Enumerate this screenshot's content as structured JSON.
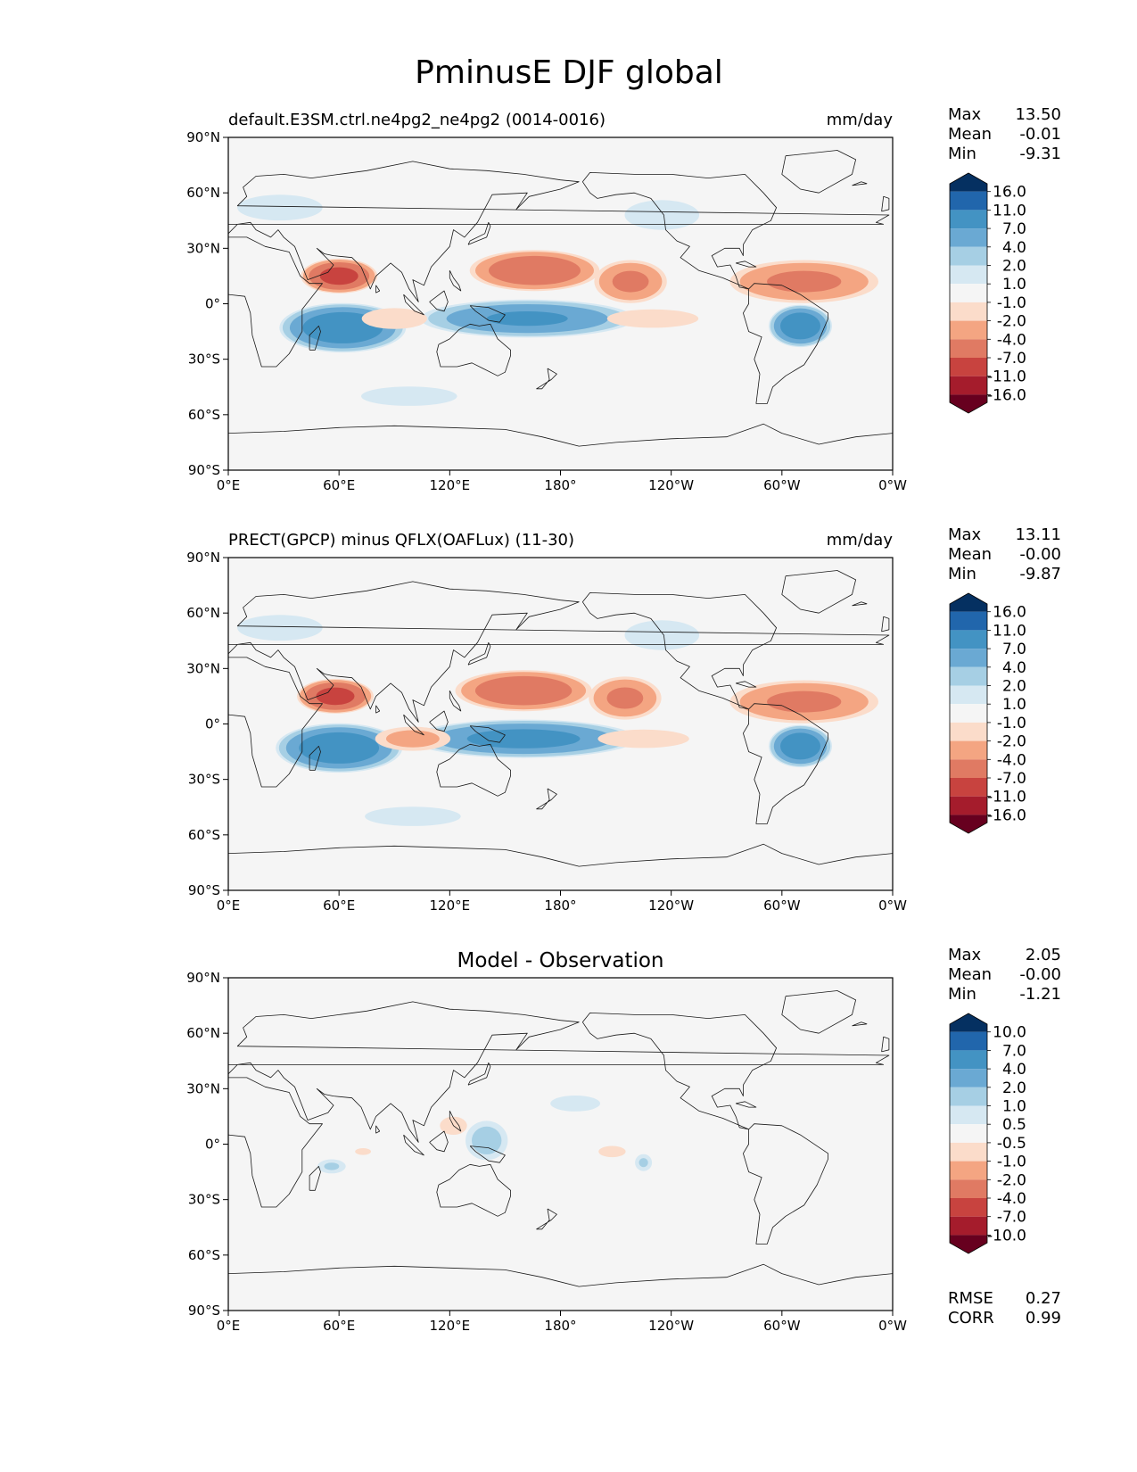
{
  "title": "PminusE DJF global",
  "colors": {
    "land_fill": "#f5f5f5",
    "coast": "#1a1a1a",
    "frame": "#000000"
  },
  "panels": [
    {
      "id": "test",
      "left_label": "default.E3SM.ctrl.ne4pg2_ne4pg2 (0014-0016)",
      "right_label": "mm/day",
      "center_label": "",
      "stats": [
        {
          "name": "Max",
          "value": "13.50"
        },
        {
          "name": "Mean",
          "value": "-0.01"
        },
        {
          "name": "Min",
          "value": "-9.31"
        }
      ],
      "extra_stats": []
    },
    {
      "id": "ref",
      "left_label": "PRECT(GPCP) minus QFLX(OAFLux) (11-30)",
      "right_label": "mm/day",
      "center_label": "",
      "stats": [
        {
          "name": "Max",
          "value": "13.11"
        },
        {
          "name": "Mean",
          "value": "-0.00"
        },
        {
          "name": "Min",
          "value": "-9.87"
        }
      ],
      "extra_stats": []
    },
    {
      "id": "diff",
      "left_label": "",
      "right_label": "",
      "center_label": "Model - Observation",
      "stats": [
        {
          "name": "Max",
          "value": "2.05"
        },
        {
          "name": "Mean",
          "value": "-0.00"
        },
        {
          "name": "Min",
          "value": "-1.21"
        }
      ],
      "extra_stats": [
        {
          "name": "RMSE",
          "value": "0.27"
        },
        {
          "name": "CORR",
          "value": "0.99"
        }
      ]
    }
  ],
  "chart_data": [
    {
      "type": "heatmap",
      "projection": "PlateCarree (central longitude 180)",
      "title": "default.E3SM.ctrl.ne4pg2_ne4pg2 (0014-0016)",
      "units": "mm/day",
      "xticks": [
        "0°E",
        "60°E",
        "120°E",
        "180°",
        "120°W",
        "60°W",
        "0°W"
      ],
      "yticks": [
        "90°N",
        "60°N",
        "30°N",
        "0°",
        "30°S",
        "60°S",
        "90°S"
      ],
      "xlim": [
        0,
        360
      ],
      "ylim": [
        -90,
        90
      ],
      "colorbar": {
        "labels": [
          "16.0",
          "11.0",
          "7.0",
          "4.0",
          "2.0",
          "1.0",
          "-1.0",
          "-2.0",
          "-4.0",
          "-7.0",
          "-11.0",
          "-16.0"
        ],
        "colors": [
          "#053061",
          "#2166ac",
          "#4393c3",
          "#6aa9d3",
          "#a6cfe4",
          "#d6e8f2",
          "#f5f5f5",
          "#fbdcca",
          "#f4a582",
          "#e07a63",
          "#c8433f",
          "#a51c2c",
          "#67001f"
        ],
        "extend": "both"
      },
      "features": [
        {
          "sign": "pos",
          "lon": 62,
          "lat": -13,
          "rx": 36,
          "ry": 14,
          "peak": 11
        },
        {
          "sign": "pos",
          "lon": 162,
          "lat": -8,
          "rx": 62,
          "ry": 11,
          "peak": 8
        },
        {
          "sign": "pos",
          "lon": 310,
          "lat": -12,
          "rx": 18,
          "ry": 12,
          "peak": 11
        },
        {
          "sign": "pos",
          "lon": 28,
          "lat": 52,
          "rx": 40,
          "ry": 12,
          "peak": 1.5
        },
        {
          "sign": "pos",
          "lon": 235,
          "lat": 48,
          "rx": 35,
          "ry": 14,
          "peak": 1.5
        },
        {
          "sign": "pos",
          "lon": 98,
          "lat": -50,
          "rx": 45,
          "ry": 9,
          "peak": 1.5
        },
        {
          "sign": "neg",
          "lon": 60,
          "lat": 15,
          "rx": 22,
          "ry": 10,
          "peak": -9
        },
        {
          "sign": "neg",
          "lon": 166,
          "lat": 18,
          "rx": 38,
          "ry": 12,
          "peak": -7
        },
        {
          "sign": "neg",
          "lon": 218,
          "lat": 12,
          "rx": 22,
          "ry": 13,
          "peak": -5
        },
        {
          "sign": "neg",
          "lon": 312,
          "lat": 12,
          "rx": 45,
          "ry": 13,
          "peak": -5
        },
        {
          "sign": "neg",
          "lon": 230,
          "lat": -8,
          "rx": 35,
          "ry": 7,
          "peak": -2
        },
        {
          "sign": "neg",
          "lon": 90,
          "lat": -8,
          "rx": 25,
          "ry": 8,
          "peak": -2
        }
      ]
    },
    {
      "type": "heatmap",
      "projection": "PlateCarree (central longitude 180)",
      "title": "PRECT(GPCP) minus QFLX(OAFLux) (11-30)",
      "units": "mm/day",
      "xticks": [
        "0°E",
        "60°E",
        "120°E",
        "180°",
        "120°W",
        "60°W",
        "0°W"
      ],
      "yticks": [
        "90°N",
        "60°N",
        "30°N",
        "0°",
        "30°S",
        "60°S",
        "90°S"
      ],
      "xlim": [
        0,
        360
      ],
      "ylim": [
        -90,
        90
      ],
      "colorbar": {
        "labels": [
          "16.0",
          "11.0",
          "7.0",
          "4.0",
          "2.0",
          "1.0",
          "-1.0",
          "-2.0",
          "-4.0",
          "-7.0",
          "-11.0",
          "-16.0"
        ],
        "colors": [
          "#053061",
          "#2166ac",
          "#4393c3",
          "#6aa9d3",
          "#a6cfe4",
          "#d6e8f2",
          "#f5f5f5",
          "#fbdcca",
          "#f4a582",
          "#e07a63",
          "#c8433f",
          "#a51c2c",
          "#67001f"
        ],
        "extend": "both"
      },
      "features": [
        {
          "sign": "pos",
          "lon": 60,
          "lat": -13,
          "rx": 36,
          "ry": 14,
          "peak": 11
        },
        {
          "sign": "pos",
          "lon": 160,
          "lat": -8,
          "rx": 65,
          "ry": 11,
          "peak": 9
        },
        {
          "sign": "pos",
          "lon": 310,
          "lat": -12,
          "rx": 18,
          "ry": 12,
          "peak": 11
        },
        {
          "sign": "pos",
          "lon": 28,
          "lat": 52,
          "rx": 40,
          "ry": 12,
          "peak": 1.5
        },
        {
          "sign": "pos",
          "lon": 235,
          "lat": 48,
          "rx": 35,
          "ry": 14,
          "peak": 1.5
        },
        {
          "sign": "pos",
          "lon": 100,
          "lat": -50,
          "rx": 45,
          "ry": 9,
          "peak": 1.5
        },
        {
          "sign": "neg",
          "lon": 58,
          "lat": 15,
          "rx": 22,
          "ry": 10,
          "peak": -9
        },
        {
          "sign": "neg",
          "lon": 160,
          "lat": 18,
          "rx": 40,
          "ry": 12,
          "peak": -7
        },
        {
          "sign": "neg",
          "lon": 215,
          "lat": 14,
          "rx": 22,
          "ry": 13,
          "peak": -5
        },
        {
          "sign": "neg",
          "lon": 312,
          "lat": 12,
          "rx": 45,
          "ry": 13,
          "peak": -5
        },
        {
          "sign": "neg",
          "lon": 225,
          "lat": -8,
          "rx": 35,
          "ry": 7,
          "peak": -2
        },
        {
          "sign": "neg",
          "lon": 100,
          "lat": -8,
          "rx": 25,
          "ry": 8,
          "peak": -3
        }
      ]
    },
    {
      "type": "heatmap",
      "projection": "PlateCarree (central longitude 180)",
      "title": "Model - Observation",
      "xticks": [
        "0°E",
        "60°E",
        "120°E",
        "180°",
        "120°W",
        "60°W",
        "0°W"
      ],
      "yticks": [
        "90°N",
        "60°N",
        "30°N",
        "0°",
        "30°S",
        "60°S",
        "90°S"
      ],
      "xlim": [
        0,
        360
      ],
      "ylim": [
        -90,
        90
      ],
      "colorbar": {
        "labels": [
          "10.0",
          "7.0",
          "4.0",
          "2.0",
          "1.0",
          "0.5",
          "-0.5",
          "-1.0",
          "-2.0",
          "-4.0",
          "-7.0",
          "-10.0"
        ],
        "colors": [
          "#053061",
          "#2166ac",
          "#4393c3",
          "#6aa9d3",
          "#a6cfe4",
          "#d6e8f2",
          "#f5f5f5",
          "#fbdcca",
          "#f4a582",
          "#e07a63",
          "#c8433f",
          "#a51c2c",
          "#67001f"
        ],
        "extend": "both"
      },
      "features": [
        {
          "sign": "pos",
          "lon": 140,
          "lat": 2,
          "rx": 14,
          "ry": 13,
          "peak": 1.5
        },
        {
          "sign": "pos",
          "lon": 188,
          "lat": 22,
          "rx": 22,
          "ry": 7,
          "peak": 0.8
        },
        {
          "sign": "pos",
          "lon": 56,
          "lat": -12,
          "rx": 10,
          "ry": 5,
          "peak": 1.2
        },
        {
          "sign": "pos",
          "lon": 225,
          "lat": -10,
          "rx": 6,
          "ry": 6,
          "peak": 1.2
        },
        {
          "sign": "neg",
          "lon": 122,
          "lat": 10,
          "rx": 12,
          "ry": 8,
          "peak": -0.8
        },
        {
          "sign": "neg",
          "lon": 208,
          "lat": -4,
          "rx": 12,
          "ry": 5,
          "peak": -0.8
        },
        {
          "sign": "neg",
          "lon": 73,
          "lat": -4,
          "rx": 7,
          "ry": 3,
          "peak": -0.8
        }
      ]
    }
  ]
}
